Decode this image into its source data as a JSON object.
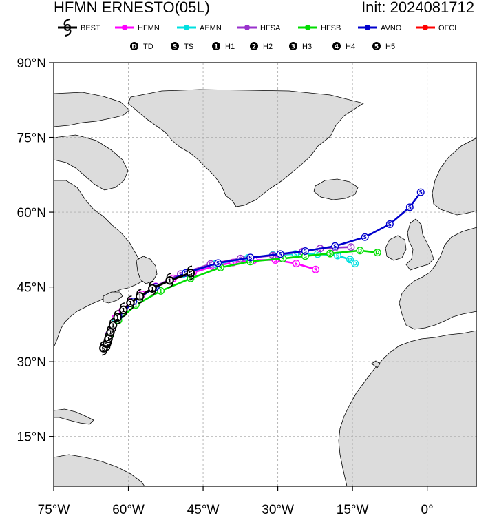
{
  "header": {
    "title": "HFMN ERNESTO(05L)",
    "init": "Init: 2024081712"
  },
  "legend_models": [
    {
      "label": "BEST",
      "color": "#000000"
    },
    {
      "label": "HFMN",
      "color": "#ff00ff"
    },
    {
      "label": "AEMN",
      "color": "#00e0e0"
    },
    {
      "label": "HFSA",
      "color": "#9932cc"
    },
    {
      "label": "HFSB",
      "color": "#00dd00"
    },
    {
      "label": "AVNO",
      "color": "#0000cd"
    },
    {
      "label": "OFCL",
      "color": "#ff0000"
    }
  ],
  "legend_intensity": [
    {
      "symbol": "D",
      "label": "TD"
    },
    {
      "symbol": "S",
      "label": "TS"
    },
    {
      "symbol": "1",
      "label": "H1"
    },
    {
      "symbol": "2",
      "label": "H2"
    },
    {
      "symbol": "3",
      "label": "H3"
    },
    {
      "symbol": "4",
      "label": "H4"
    },
    {
      "symbol": "5",
      "label": "H5"
    }
  ],
  "lat_labels": [
    "90°N",
    "75°N",
    "60°N",
    "45°N",
    "30°N",
    "15°N"
  ],
  "lon_labels": [
    "75°W",
    "60°W",
    "45°W",
    "30°W",
    "15°W",
    "0°"
  ],
  "map_extent": {
    "lon": [
      -75,
      10
    ],
    "lat": [
      5,
      90
    ]
  },
  "colors": {
    "land": "#dcdcdc",
    "coast": "#000000",
    "grid": "#b0b0b0"
  },
  "tracks": [
    {
      "model": "BEST",
      "color": "#000000",
      "points": [
        {
          "lon": -65.0,
          "lat": 32.7,
          "sym": "S"
        },
        {
          "lon": -64.3,
          "lat": 33.6,
          "sym": "S"
        },
        {
          "lon": -64.0,
          "lat": 34.6,
          "sym": "1"
        },
        {
          "lon": -63.6,
          "lat": 35.9,
          "sym": "1"
        },
        {
          "lon": -63.1,
          "lat": 37.3,
          "sym": "1"
        },
        {
          "lon": -62.2,
          "lat": 38.9,
          "sym": "1"
        },
        {
          "lon": -61.0,
          "lat": 40.4,
          "sym": "1"
        },
        {
          "lon": -59.6,
          "lat": 41.8,
          "sym": "1"
        },
        {
          "lon": -57.7,
          "lat": 43.1,
          "sym": "1"
        },
        {
          "lon": -55.2,
          "lat": 44.7,
          "sym": "1"
        },
        {
          "lon": -51.7,
          "lat": 46.3,
          "sym": "1"
        },
        {
          "lon": -47.5,
          "lat": 47.8,
          "sym": "S"
        }
      ]
    },
    {
      "model": "HFMN",
      "color": "#ff00ff",
      "points": [
        {
          "lon": -64.9,
          "lat": 32.9,
          "sym": "S"
        },
        {
          "lon": -64.2,
          "lat": 34.2,
          "sym": "S"
        },
        {
          "lon": -63.7,
          "lat": 35.6,
          "sym": "1"
        },
        {
          "lon": -63.2,
          "lat": 37.1,
          "sym": "1"
        },
        {
          "lon": -62.6,
          "lat": 38.8,
          "sym": "1"
        },
        {
          "lon": -61.2,
          "lat": 40.3,
          "sym": "1"
        },
        {
          "lon": -59.5,
          "lat": 42.0,
          "sym": "1"
        },
        {
          "lon": -57.3,
          "lat": 43.5,
          "sym": "1"
        },
        {
          "lon": -54.5,
          "lat": 45.1,
          "sym": "1"
        },
        {
          "lon": -51.0,
          "lat": 46.7,
          "sym": "S"
        },
        {
          "lon": -47.0,
          "lat": 47.9,
          "sym": "S"
        },
        {
          "lon": -43.0,
          "lat": 49.1,
          "sym": "S"
        },
        {
          "lon": -39.0,
          "lat": 49.9,
          "sym": "S"
        },
        {
          "lon": -34.8,
          "lat": 50.4,
          "sym": "S"
        },
        {
          "lon": -30.5,
          "lat": 50.4,
          "sym": "S"
        },
        {
          "lon": -26.3,
          "lat": 49.7,
          "sym": "S"
        },
        {
          "lon": -22.4,
          "lat": 48.5,
          "sym": "S"
        }
      ]
    },
    {
      "model": "AEMN",
      "color": "#00e0e0",
      "points": [
        {
          "lon": -64.9,
          "lat": 32.8,
          "sym": "S"
        },
        {
          "lon": -63.9,
          "lat": 35.4,
          "sym": "S"
        },
        {
          "lon": -62.5,
          "lat": 38.4,
          "sym": "1"
        },
        {
          "lon": -59.5,
          "lat": 41.7,
          "sym": "1"
        },
        {
          "lon": -55.0,
          "lat": 44.8,
          "sym": "1"
        },
        {
          "lon": -49.0,
          "lat": 47.6,
          "sym": "S"
        },
        {
          "lon": -42.5,
          "lat": 49.6,
          "sym": "S"
        },
        {
          "lon": -36.0,
          "lat": 50.8,
          "sym": "S"
        },
        {
          "lon": -31.0,
          "lat": 51.4,
          "sym": "S"
        },
        {
          "lon": -26.5,
          "lat": 51.6,
          "sym": "S"
        },
        {
          "lon": -22.0,
          "lat": 51.6,
          "sym": "S"
        },
        {
          "lon": -18.0,
          "lat": 51.3,
          "sym": "S"
        },
        {
          "lon": -15.5,
          "lat": 50.5,
          "sym": "D"
        },
        {
          "lon": -14.5,
          "lat": 49.7,
          "sym": "D"
        }
      ]
    },
    {
      "model": "HFSA",
      "color": "#9932cc",
      "points": [
        {
          "lon": -64.9,
          "lat": 32.8,
          "sym": "S"
        },
        {
          "lon": -63.9,
          "lat": 35.5,
          "sym": "1"
        },
        {
          "lon": -62.3,
          "lat": 38.6,
          "sym": "1"
        },
        {
          "lon": -59.3,
          "lat": 41.8,
          "sym": "1"
        },
        {
          "lon": -55.0,
          "lat": 44.9,
          "sym": "1"
        },
        {
          "lon": -49.5,
          "lat": 47.6,
          "sym": "S"
        },
        {
          "lon": -43.5,
          "lat": 49.6,
          "sym": "S"
        },
        {
          "lon": -37.5,
          "lat": 50.7,
          "sym": "S"
        },
        {
          "lon": -31.0,
          "lat": 51.3,
          "sym": "S"
        },
        {
          "lon": -25.0,
          "lat": 52.1,
          "sym": "S"
        },
        {
          "lon": -21.5,
          "lat": 52.7,
          "sym": "S"
        },
        {
          "lon": -18.5,
          "lat": 52.9,
          "sym": "S"
        },
        {
          "lon": -15.3,
          "lat": 53.0,
          "sym": "S"
        }
      ]
    },
    {
      "model": "HFSB",
      "color": "#00dd00",
      "points": [
        {
          "lon": -64.9,
          "lat": 32.7,
          "sym": "S"
        },
        {
          "lon": -63.8,
          "lat": 35.3,
          "sym": "1"
        },
        {
          "lon": -62.0,
          "lat": 38.3,
          "sym": "1"
        },
        {
          "lon": -58.5,
          "lat": 41.4,
          "sym": "1"
        },
        {
          "lon": -53.5,
          "lat": 44.2,
          "sym": "1"
        },
        {
          "lon": -47.5,
          "lat": 46.7,
          "sym": "S"
        },
        {
          "lon": -41.5,
          "lat": 48.9,
          "sym": "S"
        },
        {
          "lon": -35.5,
          "lat": 50.1,
          "sym": "S"
        },
        {
          "lon": -29.0,
          "lat": 50.7,
          "sym": "S"
        },
        {
          "lon": -24.5,
          "lat": 51.2,
          "sym": "S"
        },
        {
          "lon": -19.5,
          "lat": 51.7,
          "sym": "S"
        },
        {
          "lon": -13.5,
          "lat": 52.3,
          "sym": "D"
        },
        {
          "lon": -10.0,
          "lat": 51.9,
          "sym": "D"
        }
      ]
    },
    {
      "model": "AVNO",
      "color": "#0000cd",
      "points": [
        {
          "lon": -64.9,
          "lat": 32.9,
          "sym": "S"
        },
        {
          "lon": -63.7,
          "lat": 35.8,
          "sym": "S"
        },
        {
          "lon": -62.0,
          "lat": 39.0,
          "sym": "S"
        },
        {
          "lon": -59.0,
          "lat": 42.1,
          "sym": "S"
        },
        {
          "lon": -54.5,
          "lat": 45.0,
          "sym": "S"
        },
        {
          "lon": -48.5,
          "lat": 47.8,
          "sym": "S"
        },
        {
          "lon": -42.0,
          "lat": 49.8,
          "sym": "S"
        },
        {
          "lon": -35.5,
          "lat": 50.9,
          "sym": "S"
        },
        {
          "lon": -29.5,
          "lat": 51.6,
          "sym": "S"
        },
        {
          "lon": -24.5,
          "lat": 52.2,
          "sym": "S"
        },
        {
          "lon": -18.5,
          "lat": 53.2,
          "sym": "S"
        },
        {
          "lon": -12.5,
          "lat": 55.0,
          "sym": "S"
        },
        {
          "lon": -7.5,
          "lat": 57.6,
          "sym": "S"
        },
        {
          "lon": -3.5,
          "lat": 61.0,
          "sym": "S"
        },
        {
          "lon": -1.3,
          "lat": 64.0,
          "sym": "S"
        }
      ]
    }
  ]
}
